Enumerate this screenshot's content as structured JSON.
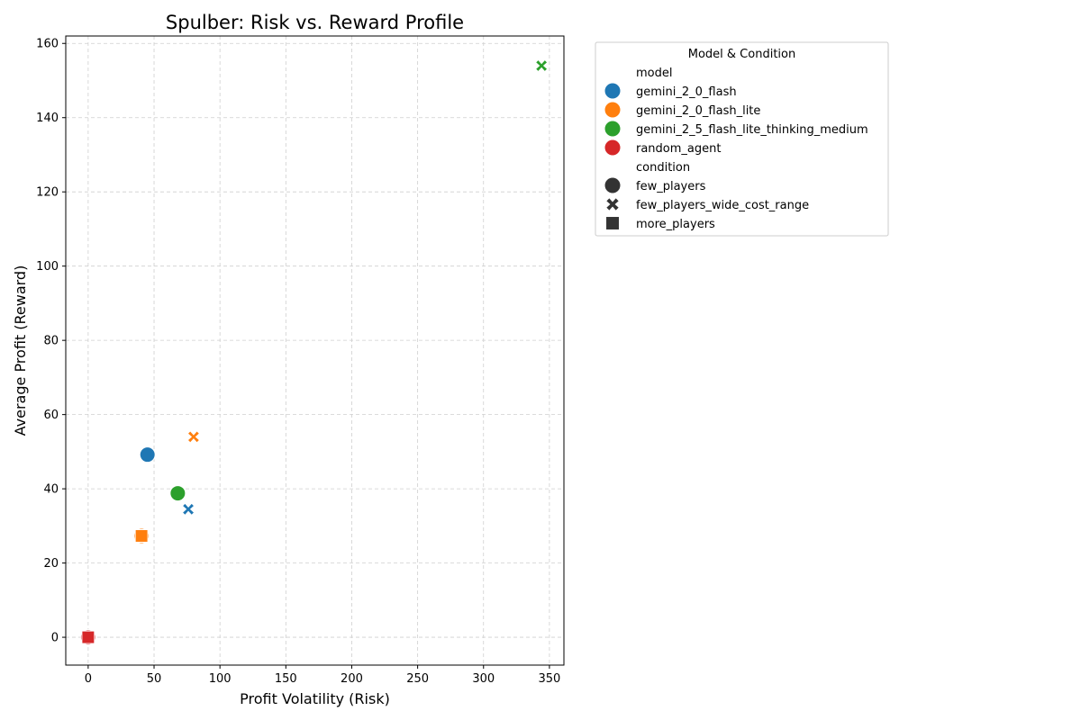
{
  "chart_data": {
    "type": "scatter",
    "title": "Spulber: Risk vs. Reward Profile",
    "xlabel": "Profit Volatility (Risk)",
    "ylabel": "Average Profit (Reward)",
    "xlim": [
      -17,
      361
    ],
    "ylim": [
      -7.5,
      162
    ],
    "xticks": [
      0,
      50,
      100,
      150,
      200,
      250,
      300,
      350
    ],
    "yticks": [
      0,
      20,
      40,
      60,
      80,
      100,
      120,
      140,
      160
    ],
    "grid": true,
    "legend": {
      "title": "Model & Condition",
      "placement": "outside-upper-right",
      "hue_title": "model",
      "style_title": "condition"
    },
    "models": [
      {
        "name": "gemini_2_0_flash",
        "color": "#1f77b4"
      },
      {
        "name": "gemini_2_0_flash_lite",
        "color": "#ff7f0e"
      },
      {
        "name": "gemini_2_5_flash_lite_thinking_medium",
        "color": "#2ca02c"
      },
      {
        "name": "random_agent",
        "color": "#d62728"
      }
    ],
    "conditions": [
      {
        "name": "few_players",
        "marker": "circle"
      },
      {
        "name": "few_players_wide_cost_range",
        "marker": "x"
      },
      {
        "name": "more_players",
        "marker": "square"
      }
    ],
    "points": [
      {
        "model": "gemini_2_0_flash",
        "condition": "few_players",
        "x": 45,
        "y": 49.2
      },
      {
        "model": "gemini_2_0_flash",
        "condition": "few_players_wide_cost_range",
        "x": 76,
        "y": 34.5
      },
      {
        "model": "gemini_2_0_flash_lite",
        "condition": "few_players_wide_cost_range",
        "x": 80,
        "y": 54
      },
      {
        "model": "gemini_2_0_flash_lite",
        "condition": "few_players",
        "x": 40.5,
        "y": 27.3
      },
      {
        "model": "gemini_2_0_flash_lite",
        "condition": "more_players",
        "x": 40.5,
        "y": 27.3
      },
      {
        "model": "gemini_2_5_flash_lite_thinking_medium",
        "condition": "few_players",
        "x": 68,
        "y": 38.8
      },
      {
        "model": "gemini_2_5_flash_lite_thinking_medium",
        "condition": "few_players_wide_cost_range",
        "x": 344,
        "y": 154
      },
      {
        "model": "random_agent",
        "condition": "few_players",
        "x": 0,
        "y": 0
      },
      {
        "model": "random_agent",
        "condition": "few_players_wide_cost_range",
        "x": 0,
        "y": 0
      },
      {
        "model": "random_agent",
        "condition": "more_players",
        "x": 0,
        "y": 0
      }
    ]
  }
}
